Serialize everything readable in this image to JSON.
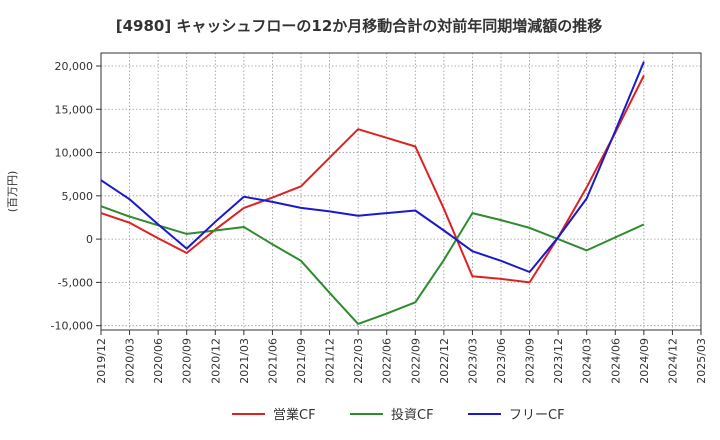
{
  "chart_data": {
    "type": "line",
    "title": "[4980]  キャッシュフローの12か月移動合計の対前年同期増減額の推移",
    "ylabel": "(百万円)",
    "ylim": [
      -10500,
      21500
    ],
    "yticks": [
      -10000,
      -5000,
      0,
      5000,
      10000,
      15000,
      20000
    ],
    "ytick_labels": [
      "-10,000",
      "-5,000",
      "0",
      "5,000",
      "10,000",
      "15,000",
      "20,000"
    ],
    "categories": [
      "2019/12",
      "2020/03",
      "2020/06",
      "2020/09",
      "2020/12",
      "2021/03",
      "2021/06",
      "2021/09",
      "2021/12",
      "2022/03",
      "2022/06",
      "2022/09",
      "2022/12",
      "2023/03",
      "2023/06",
      "2023/09",
      "2023/12",
      "2024/03",
      "2024/06",
      "2024/09",
      "2024/12",
      "2025/03"
    ],
    "grid": true,
    "legend_position": "bottom",
    "series": [
      {
        "name": "営業CF",
        "color": "#dd2222",
        "values": [
          3000,
          1900,
          100,
          -1600,
          1100,
          3600,
          4800,
          6100,
          9400,
          12700,
          11700,
          10700,
          3500,
          -4300,
          -4600,
          -5000,
          200,
          6000,
          12300,
          18900,
          null,
          null
        ]
      },
      {
        "name": "投資CF",
        "color": "#2e8b2e",
        "values": [
          3800,
          2600,
          1600,
          600,
          1000,
          1400,
          -600,
          -2500,
          -6200,
          -9800,
          -8600,
          -7300,
          -2400,
          3000,
          2200,
          1300,
          0,
          -1300,
          200,
          1700,
          null,
          null
        ]
      },
      {
        "name": "フリーCF",
        "color": "#1a1acc",
        "values": [
          6800,
          4600,
          1700,
          -1100,
          2000,
          4900,
          4300,
          3600,
          3200,
          2700,
          3000,
          3300,
          1000,
          -1400,
          -2500,
          -3800,
          200,
          4700,
          12500,
          20500,
          null,
          null
        ]
      }
    ]
  }
}
